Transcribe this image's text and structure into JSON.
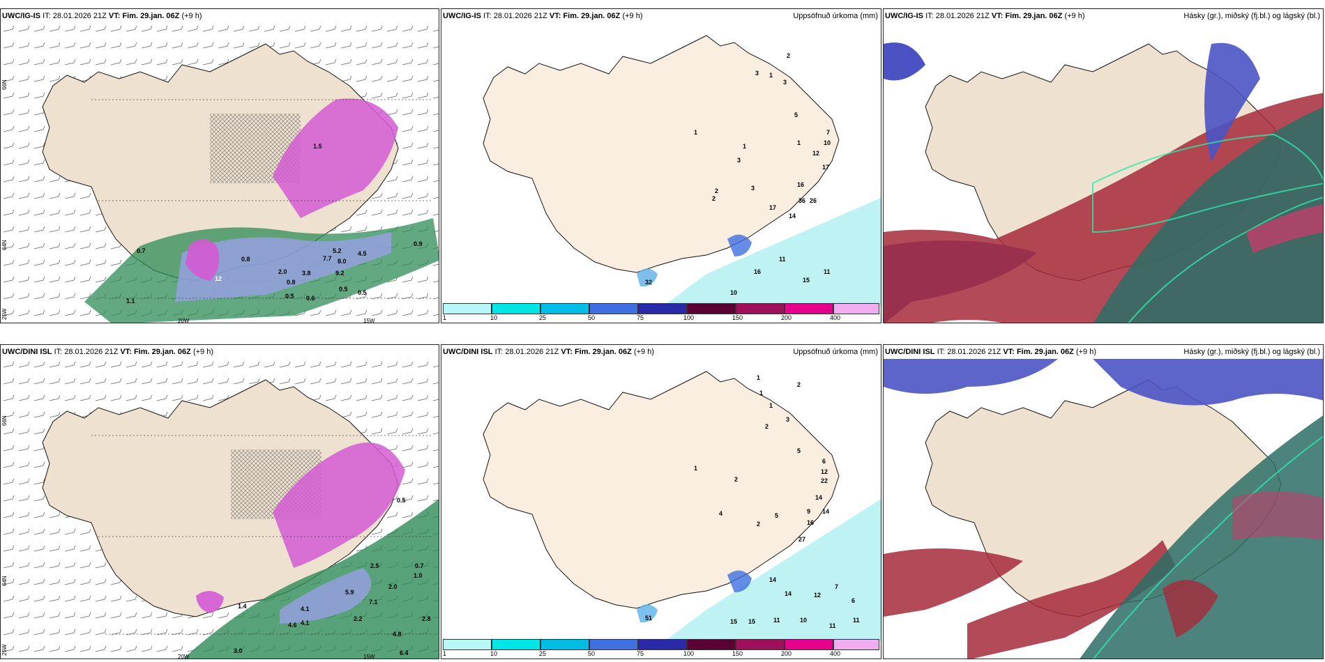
{
  "rows": [
    {
      "model": "UWC/IG-IS"
    },
    {
      "model": "UWC/DINI ISL"
    }
  ],
  "it_label": "IT:",
  "it_value": "28.01.2026 21Z",
  "vt_label": "VT:",
  "vt_value": "Fim. 29.jan. 06Z",
  "lead": "(+9 h)",
  "precip_title": "Uppsöfnuð úrkoma (mm)",
  "cloud_title": "Hásky (gr.), miðský (fj.bl.) og lágský (bl.)",
  "axes": {
    "lat_66": "66N",
    "lat_64": "64N",
    "lon_20": "20W",
    "lon_15": "15W",
    "lon_25": "25W"
  },
  "colorbar": {
    "colors": [
      "#b7f7f7",
      "#00e5e5",
      "#00bde6",
      "#3f6fe0",
      "#2a2aa8",
      "#5a0033",
      "#a0105a",
      "#e6008c",
      "#f0aef0"
    ],
    "ticks": [
      "1",
      "10",
      "25",
      "50",
      "75",
      "100",
      "150",
      "200",
      "400"
    ]
  },
  "colors": {
    "land": "#efe1d0",
    "land_precip": "#faeee0",
    "sea_precip": "#bff3f3",
    "green": "#2e8b57",
    "magenta": "#d45ad4",
    "blue_cloud": "#4b53c4",
    "red_cloud": "#a62a3a",
    "teal_cloud": "#2d6e66"
  },
  "panel1_labels": [
    "0.7",
    "1.1",
    "12",
    "0.8",
    "3.8",
    "2.0",
    "0.5",
    "0.6",
    "8.0",
    "9.2",
    "5.2",
    "4.5",
    "7.7",
    "0.5",
    "0.9",
    "0.5",
    "1.5",
    "0.8"
  ],
  "panel2_labels": [
    "3",
    "2",
    "1",
    "3",
    "1",
    "2",
    "5",
    "1",
    "1",
    "3",
    "3",
    "12",
    "17",
    "7",
    "10",
    "16",
    "36",
    "26",
    "17",
    "14",
    "2",
    "11",
    "16",
    "15",
    "11",
    "10",
    "32"
  ],
  "panel4_labels": [
    "1.4",
    "4.1",
    "4.6",
    "4.1",
    "7.1",
    "5.9",
    "2.0",
    "4.8",
    "6.4",
    "3.0",
    "2.5",
    "0.7",
    "1.0",
    "2.8",
    "0.5",
    "2.2"
  ],
  "panel5_labels": [
    "1",
    "2",
    "1",
    "1",
    "3",
    "2",
    "2",
    "5",
    "1",
    "6",
    "12",
    "22",
    "14",
    "9",
    "16",
    "14",
    "27",
    "4",
    "2",
    "5",
    "14",
    "14",
    "12",
    "7",
    "6",
    "11",
    "15",
    "15",
    "11",
    "10",
    "11",
    "51"
  ]
}
